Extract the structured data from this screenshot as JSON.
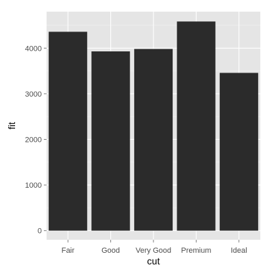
{
  "chart_data": {
    "type": "bar",
    "title": "",
    "xlabel": "cut",
    "ylabel": "fit",
    "categories": [
      "Fair",
      "Good",
      "Very Good",
      "Premium",
      "Ideal"
    ],
    "values": [
      4358.76,
      3928.86,
      3981.76,
      4584.26,
      3457.54
    ],
    "ylim": [
      -200,
      4800
    ],
    "yticks": [
      0,
      1000,
      2000,
      3000,
      4000
    ],
    "ytick_labels": [
      "0",
      "1000",
      "2000",
      "3000",
      "4000"
    ],
    "grid": true,
    "legend": "none",
    "colors": {
      "bar": "#2b2b2b",
      "panel": "#e5e5e5",
      "grid_major": "#ffffff",
      "grid_minor": "#f2f2f2",
      "tick_text": "#4d4d4d"
    }
  }
}
